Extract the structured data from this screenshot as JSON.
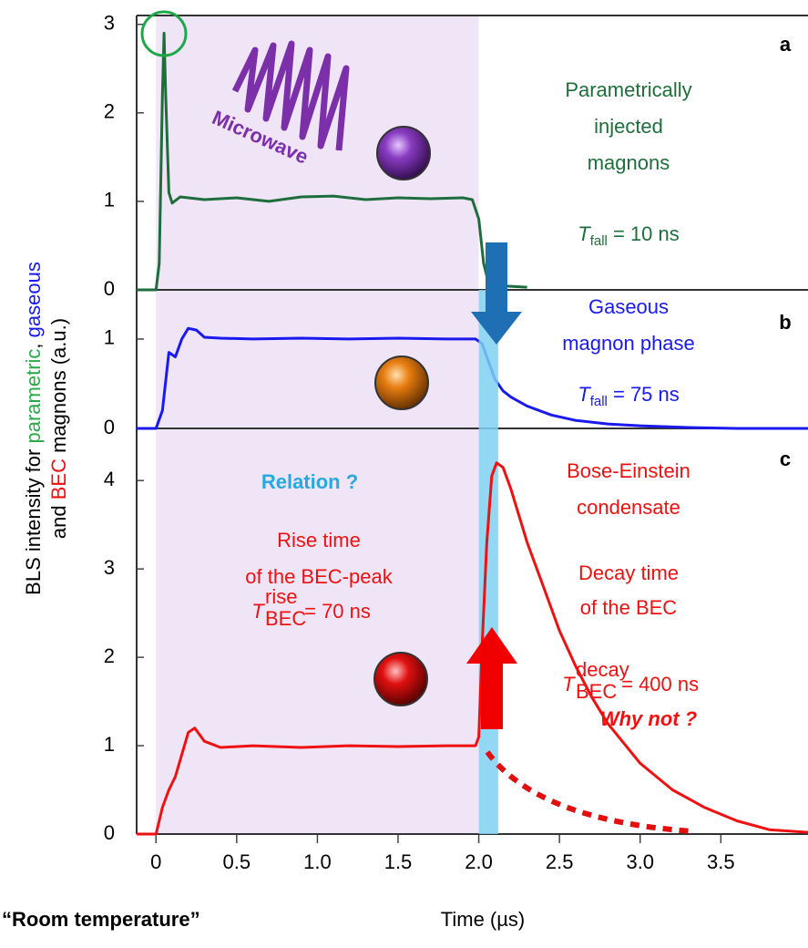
{
  "chart_data": [
    {
      "type": "line",
      "panel_label": "a",
      "xlim": [
        -0.12,
        4.04
      ],
      "ylim": [
        0,
        3.1
      ],
      "yticks": [
        0,
        1,
        2,
        3
      ],
      "series": [
        {
          "color": "#1e6e3c",
          "x": [
            -0.12,
            0,
            0.02,
            0.04,
            0.05,
            0.06,
            0.08,
            0.1,
            0.15,
            0.3,
            0.5,
            0.7,
            0.9,
            1.1,
            1.3,
            1.5,
            1.7,
            1.9,
            1.96,
            2.0,
            2.03,
            2.06,
            2.1,
            2.2,
            2.3
          ],
          "values": [
            0,
            0,
            0.3,
            2.2,
            2.9,
            2.2,
            1.1,
            0.98,
            1.05,
            1.02,
            1.04,
            1.0,
            1.05,
            1.06,
            1.02,
            1.04,
            1.03,
            1.04,
            1.02,
            0.8,
            0.3,
            0.08,
            0.05,
            0.04,
            0.03
          ]
        }
      ]
    },
    {
      "type": "line",
      "panel_label": "b",
      "xlim": [
        -0.12,
        4.04
      ],
      "ylim": [
        0,
        1.55
      ],
      "yticks": [
        0,
        1
      ],
      "series": [
        {
          "color": "#1a1aee",
          "x": [
            -0.12,
            0,
            0.04,
            0.08,
            0.12,
            0.16,
            0.2,
            0.25,
            0.3,
            0.4,
            0.6,
            0.9,
            1.2,
            1.5,
            1.8,
            1.98,
            2.02,
            2.06,
            2.1,
            2.15,
            2.2,
            2.3,
            2.45,
            2.6,
            2.8,
            3.0,
            3.3,
            3.6,
            4.04
          ],
          "values": [
            0,
            0,
            0.2,
            0.85,
            0.8,
            1.0,
            1.12,
            1.1,
            1.02,
            1.01,
            1.0,
            1.01,
            1.0,
            1.01,
            1.0,
            1.0,
            0.95,
            0.75,
            0.55,
            0.42,
            0.35,
            0.25,
            0.15,
            0.09,
            0.05,
            0.03,
            0.01,
            0,
            0
          ]
        }
      ]
    },
    {
      "type": "line",
      "panel_label": "c",
      "xlim": [
        -0.12,
        4.04
      ],
      "ylim": [
        0,
        4.59
      ],
      "yticks": [
        0,
        1,
        2,
        3,
        4
      ],
      "xticks": [
        0,
        0.5,
        {
          "value": 1,
          "label": "1.0"
        },
        1.5,
        {
          "value": 2,
          "label": "2.0"
        },
        2.5,
        {
          "value": 3,
          "label": "3.0"
        },
        3.5
      ],
      "xlabel": "Time (µs)",
      "series": [
        {
          "color": "#ee1111",
          "x": [
            -0.12,
            0,
            0.04,
            0.08,
            0.12,
            0.16,
            0.2,
            0.24,
            0.3,
            0.4,
            0.6,
            0.9,
            1.2,
            1.5,
            1.8,
            1.98,
            2.0,
            2.02,
            2.05,
            2.08,
            2.11,
            2.15,
            2.2,
            2.3,
            2.4,
            2.5,
            2.6,
            2.7,
            2.8,
            3.0,
            3.2,
            3.4,
            3.6,
            3.8,
            4.04
          ],
          "values": [
            0,
            0,
            0.3,
            0.5,
            0.65,
            0.9,
            1.15,
            1.2,
            1.05,
            0.98,
            1.0,
            0.98,
            1.0,
            0.99,
            1.0,
            1.0,
            1.1,
            2.1,
            3.3,
            4.05,
            4.2,
            4.15,
            3.9,
            3.3,
            2.8,
            2.3,
            1.9,
            1.55,
            1.25,
            0.8,
            0.5,
            0.3,
            0.15,
            0.05,
            0.02
          ]
        }
      ]
    }
  ],
  "shading": {
    "x": [
      0,
      2.0
    ],
    "color": "#f0e4f7"
  },
  "highlight": {
    "x": [
      2.0,
      2.12
    ],
    "color": "#7fd0f2"
  },
  "ylabel": {
    "line1": [
      "BLS intensity for ",
      "parametric",
      ", ",
      "gaseous"
    ],
    "line2": [
      "and ",
      "BEC",
      " magnons (a.u.)"
    ]
  },
  "annotations": {
    "a": {
      "lines": [
        "Parametrically",
        "injected",
        "magnons"
      ],
      "t": "T",
      "sub": "fall",
      "rest": " = 10 ns",
      "microwave": "Microwave"
    },
    "b": {
      "lines": [
        "Gaseous",
        "magnon phase"
      ],
      "t": "T",
      "sub": "fall",
      "rest": " = 75 ns"
    },
    "c": {
      "lines": [
        "Bose-Einstein",
        "condensate"
      ],
      "decay_lines": [
        "Decay time",
        "of the BEC"
      ],
      "t": "T",
      "sub": "BEC",
      "sup": "decay",
      "rest": " = 400 ns",
      "rise_lines": [
        "Rise time",
        "of the BEC-peak"
      ],
      "rise_t": "T",
      "rise_sub": "BEC",
      "rise_sup": "rise",
      "rise_rest": " = 70 ns"
    },
    "relation": "Relation ?",
    "why_not": "Why not ?",
    "room": "“Room temperature”"
  }
}
